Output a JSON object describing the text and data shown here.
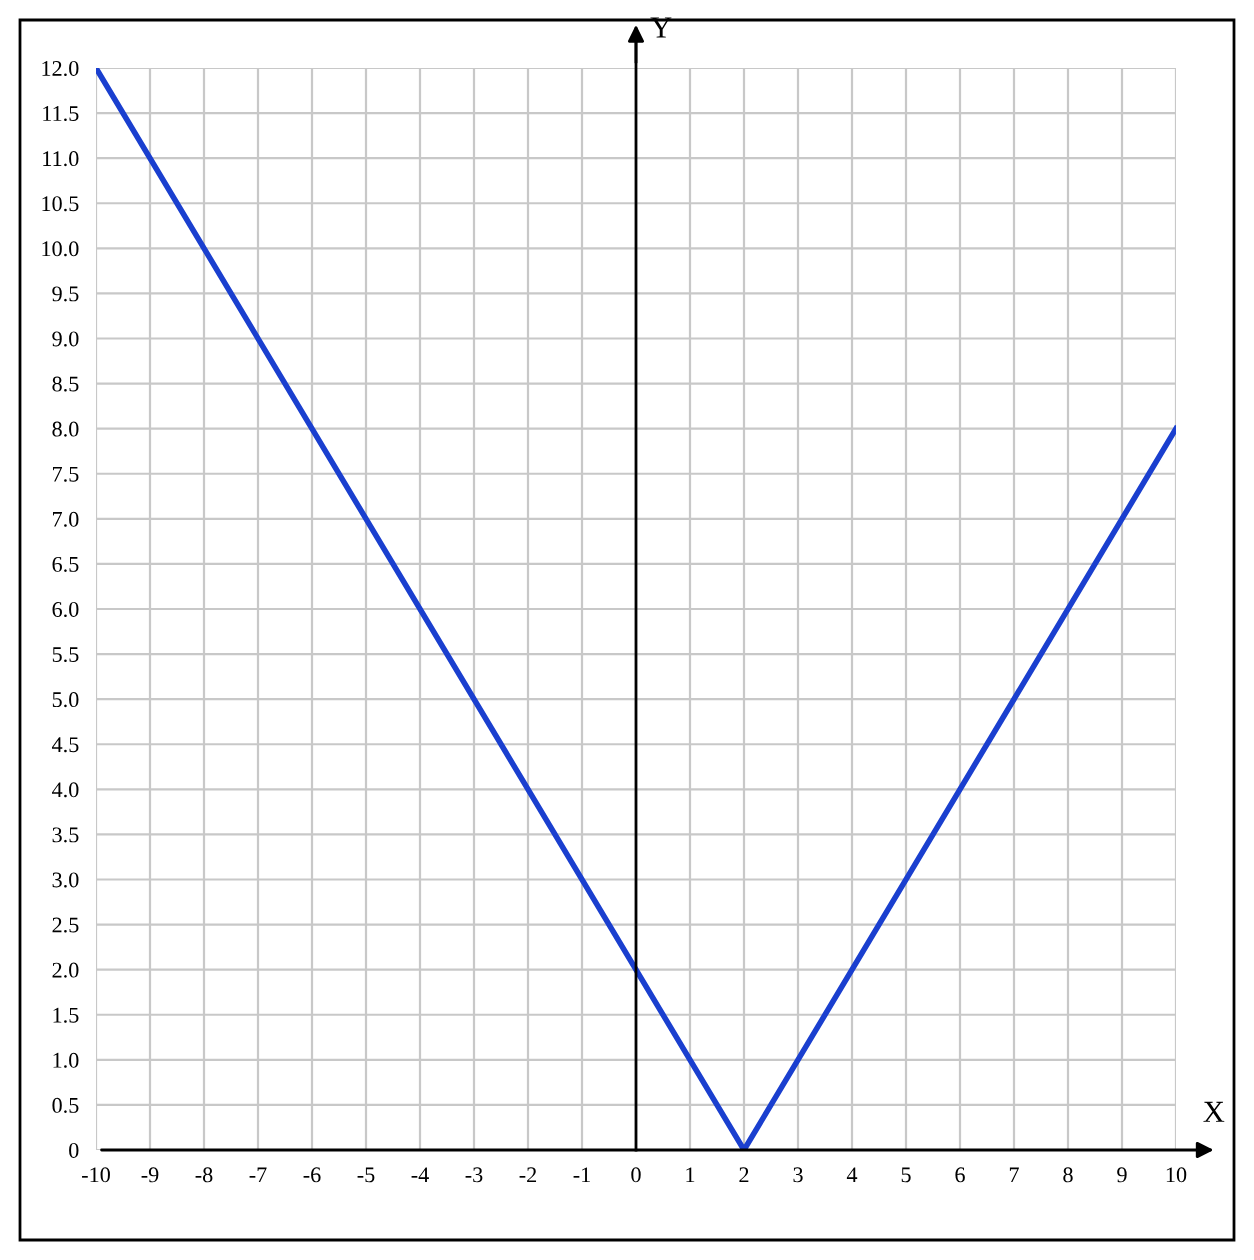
{
  "chart_data": {
    "type": "line",
    "xlabel": "X",
    "ylabel": "Y",
    "x": [
      -10,
      2,
      10
    ],
    "series": [
      {
        "color": "#1a3fcf",
        "values": [
          12,
          0,
          8
        ]
      }
    ],
    "xlim": [
      -10,
      10
    ],
    "ylim": [
      0,
      12
    ],
    "xticks": [
      -10,
      -9,
      -8,
      -7,
      -6,
      -5,
      -4,
      -3,
      -2,
      -1,
      0,
      1,
      2,
      3,
      4,
      5,
      6,
      7,
      8,
      9,
      10
    ],
    "yticks": [
      0,
      0.5,
      {
        "value": 1,
        "label": "1.0"
      },
      1.5,
      {
        "value": 2,
        "label": "2.0"
      },
      2.5,
      {
        "value": 3,
        "label": "3.0"
      },
      3.5,
      {
        "value": 4,
        "label": "4.0"
      },
      4.5,
      {
        "value": 5,
        "label": "5.0"
      },
      5.5,
      {
        "value": 6,
        "label": "6.0"
      },
      6.5,
      {
        "value": 7,
        "label": "7.0"
      },
      7.5,
      {
        "value": 8,
        "label": "8.0"
      },
      8.5,
      {
        "value": 9,
        "label": "9.0"
      },
      9.5,
      {
        "value": 10,
        "label": "10.0"
      },
      10.5,
      {
        "value": 11,
        "label": "11.0"
      },
      11.5,
      {
        "value": 12,
        "label": "12.0"
      }
    ],
    "grid": true,
    "marker": "none",
    "line_style": "solid"
  }
}
